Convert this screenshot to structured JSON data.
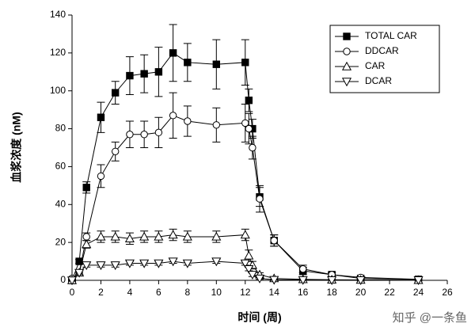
{
  "chart_data": {
    "type": "line",
    "xlabel": "时间 (周)",
    "ylabel": "血浆浓度 (nM)",
    "watermark": "知乎 @一条鱼",
    "x": [
      0,
      0.5,
      1,
      2,
      3,
      4,
      5,
      6,
      7,
      8,
      10,
      12,
      12.25,
      12.5,
      13,
      14,
      16,
      18,
      20,
      24
    ],
    "xlim": [
      0,
      26
    ],
    "xticks": [
      0,
      2,
      4,
      6,
      8,
      10,
      12,
      14,
      16,
      18,
      20,
      22,
      24,
      26
    ],
    "ylim": [
      0,
      140
    ],
    "yticks": [
      0,
      20,
      40,
      60,
      80,
      100,
      120,
      140
    ],
    "legend": "upper right",
    "series": [
      {
        "name": "TOTAL CAR",
        "color": "#000000",
        "marker": "square-filled",
        "values": [
          0,
          10,
          49,
          86,
          99,
          108,
          109,
          110,
          120,
          115,
          114,
          115,
          95,
          80,
          44,
          21,
          5,
          3,
          1,
          0.5
        ],
        "errors": [
          0.5,
          1,
          3,
          8,
          6,
          10,
          10,
          13,
          15,
          10,
          13,
          12,
          6,
          5,
          5,
          3,
          2,
          1,
          0.5,
          0.5
        ]
      },
      {
        "name": "DDCAR",
        "color": "#000000",
        "marker": "circle-open",
        "values": [
          1,
          4,
          23,
          55,
          68,
          77,
          77,
          78,
          87,
          84,
          82,
          83,
          80,
          70,
          43,
          21,
          6,
          3,
          1.5,
          0.5
        ],
        "errors": [
          0.5,
          1,
          2,
          6,
          5,
          7,
          7,
          8,
          12,
          8,
          9,
          10,
          8,
          6,
          7,
          3,
          2,
          1,
          0.5,
          0.5
        ]
      },
      {
        "name": "CAR",
        "color": "#000000",
        "marker": "triangle-up-open",
        "values": [
          0,
          4,
          19,
          23,
          23,
          22,
          23,
          23,
          24,
          23,
          23,
          24,
          13,
          8,
          3,
          1,
          0.5,
          0.3,
          0.2,
          0.1
        ],
        "errors": [
          0.3,
          1,
          2,
          3,
          3,
          3,
          3,
          3,
          3,
          3,
          3,
          3,
          3,
          2,
          1,
          0.5,
          0.3,
          0.2,
          0.1,
          0.1
        ]
      },
      {
        "name": "DCAR",
        "color": "#000000",
        "marker": "triangle-down-open",
        "values": [
          0,
          4,
          8,
          8,
          8,
          9,
          9,
          9,
          10,
          9,
          10,
          9,
          6,
          3,
          1,
          0.3,
          0.2,
          0.1,
          0.1,
          0.1
        ],
        "errors": [
          0.2,
          1,
          1,
          1,
          1,
          1,
          1,
          1,
          1,
          1,
          1,
          1,
          1,
          1,
          0.5,
          0.2,
          0.1,
          0.1,
          0.1,
          0.1
        ]
      }
    ]
  }
}
